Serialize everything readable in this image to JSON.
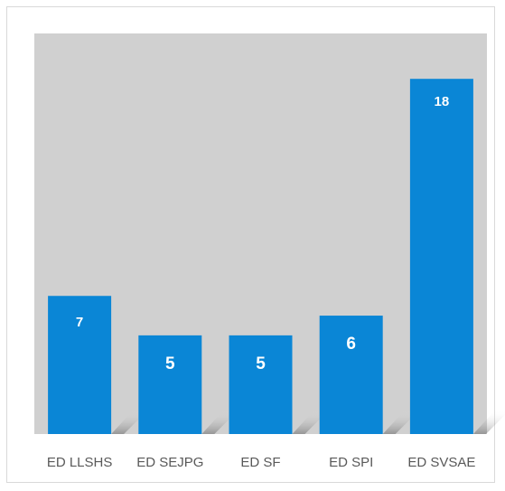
{
  "chart_data": {
    "type": "bar",
    "categories": [
      "ED LLSHS",
      "ED SEJPG",
      "ED SF",
      "ED SPI",
      "ED SVSAE"
    ],
    "values": [
      7,
      5,
      5,
      6,
      18
    ],
    "data_labels": [
      "7",
      "5",
      "5",
      "6",
      "18"
    ],
    "title": "",
    "xlabel": "",
    "ylabel": "",
    "ylim": [
      0,
      20.3
    ],
    "grid": false,
    "legend": "none",
    "colors": {
      "bar": "#0A86D6",
      "plot_background": "#D0D0D0",
      "floor_shadow": "#9A9A9A",
      "tick_text": "#595959",
      "data_label": "#FFFFFF"
    }
  }
}
